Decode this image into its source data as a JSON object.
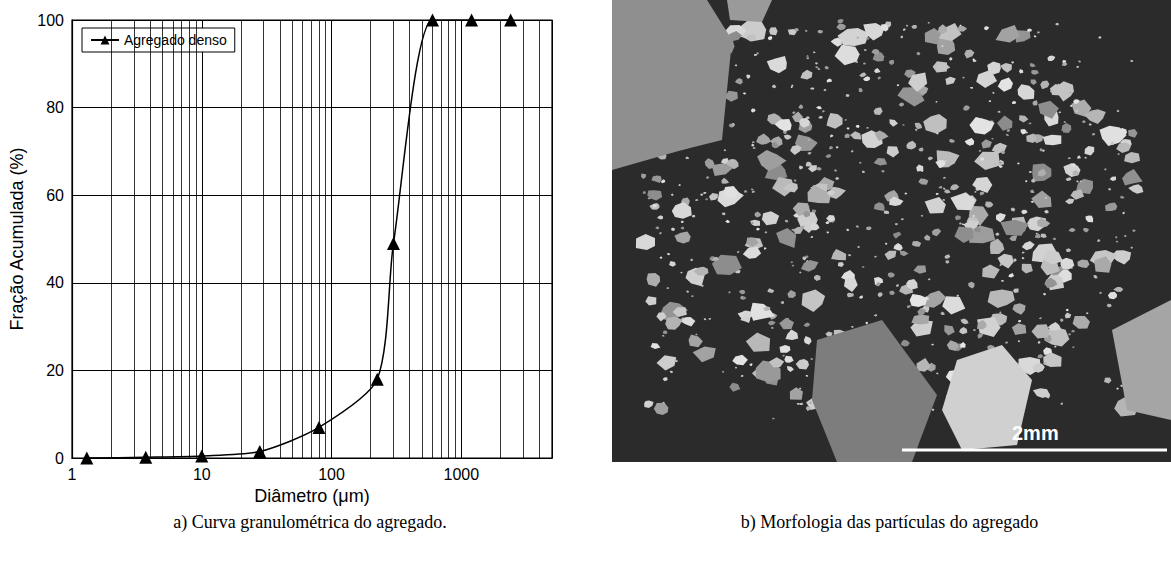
{
  "chart_data": {
    "type": "line",
    "xlabel": "Diâmetro (μm)",
    "ylabel": "Fração Acumulada (%)",
    "x": [
      1.3,
      3.7,
      10,
      28,
      80,
      225,
      300,
      600,
      1200,
      2400
    ],
    "series": [
      {
        "name": "Agregado denso",
        "color": "#000000",
        "marker": "triangle",
        "line_style": "solid",
        "values": [
          0,
          0.2,
          0.5,
          1.5,
          7,
          18,
          49,
          100,
          100,
          100
        ]
      }
    ],
    "xlim": [
      1,
      5000
    ],
    "xticks": [
      1,
      10,
      100,
      1000
    ],
    "ylim": [
      0,
      100
    ],
    "yticks": [
      0,
      20,
      40,
      60,
      80,
      100
    ],
    "log": "x",
    "grid": true,
    "legend": "upper left"
  },
  "captions": [
    "a) Curva granulométrica do agregado.",
    "b) Morfologia das partículas do agregado"
  ],
  "image": {
    "scale_bar": "2mm"
  }
}
